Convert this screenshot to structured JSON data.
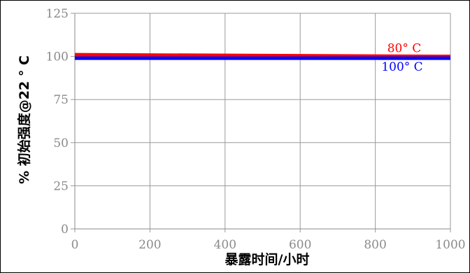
{
  "chart_data": {
    "type": "line",
    "title": "",
    "xlabel": "暴露时间/小时",
    "ylabel": "% 初始强度@22 ° C",
    "xlim": [
      0,
      1000
    ],
    "ylim": [
      0,
      125
    ],
    "x_ticks": [
      0,
      200,
      400,
      600,
      800,
      1000
    ],
    "y_ticks": [
      0,
      25,
      50,
      75,
      100,
      125
    ],
    "x_tick_labels": [
      "0",
      "200",
      "400",
      "600",
      "800",
      "1000"
    ],
    "y_tick_labels": [
      "0",
      "25",
      "50",
      "75",
      "100",
      "125"
    ],
    "grid": true,
    "legend": "none",
    "series": [
      {
        "name": "80° C",
        "label": "80° C",
        "color": "#ff0000",
        "x": [
          0,
          1000
        ],
        "values": [
          101,
          100
        ]
      },
      {
        "name": "100° C",
        "label": "100° C",
        "color": "#0000ff",
        "x": [
          0,
          1000
        ],
        "values": [
          99,
          99
        ]
      }
    ]
  }
}
